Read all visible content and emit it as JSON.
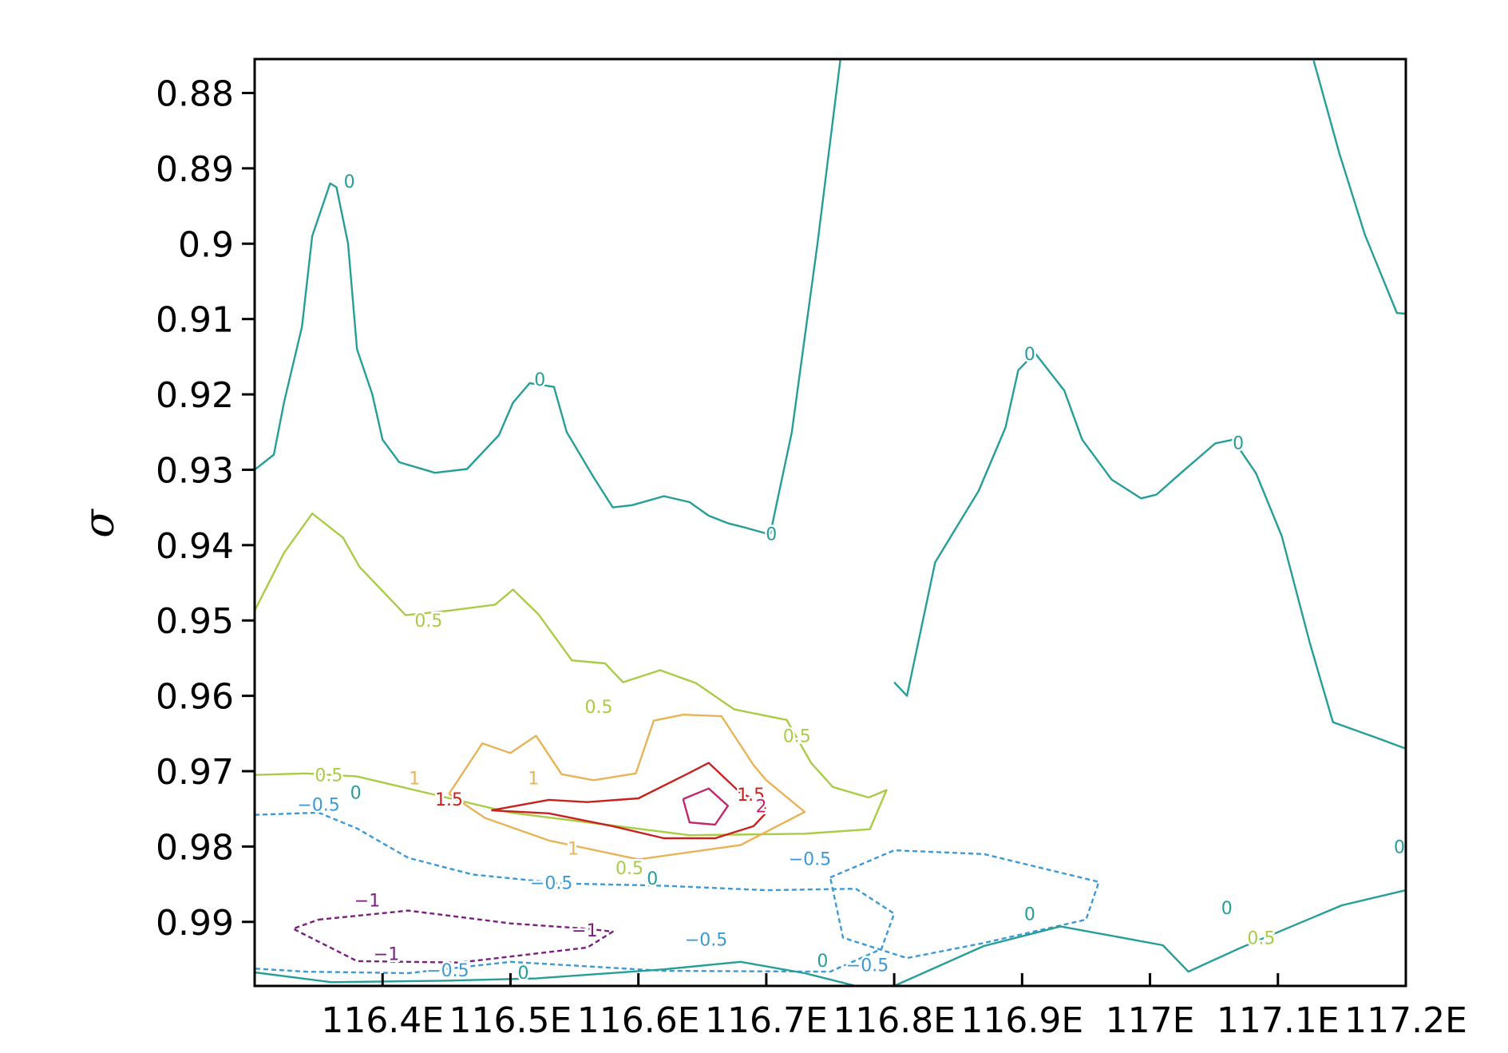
{
  "chart_data": {
    "type": "contour",
    "xlabel": "",
    "ylabel": "σ",
    "xlim": [
      116.3,
      117.2
    ],
    "ylim": [
      0.9985,
      0.8755
    ],
    "x_ticks": [
      116.4,
      116.5,
      116.6,
      116.7,
      116.8,
      116.9,
      117.0,
      117.1,
      117.2
    ],
    "x_tick_labels": [
      "116.4E",
      "116.5E",
      "116.6E",
      "116.7E",
      "116.8E",
      "116.9E",
      "117E",
      "117.1E",
      "117.2E"
    ],
    "y_ticks": [
      0.88,
      0.89,
      0.9,
      0.91,
      0.92,
      0.93,
      0.94,
      0.95,
      0.96,
      0.97,
      0.98,
      0.99
    ],
    "y_tick_labels": [
      "0.88",
      "0.89",
      "0.9",
      "0.91",
      "0.92",
      "0.93",
      "0.94",
      "0.95",
      "0.96",
      "0.97",
      "0.98",
      "0.99"
    ],
    "levels": [
      {
        "value": -1,
        "color": "#7a1f7e",
        "dash": true
      },
      {
        "value": -0.5,
        "color": "#3b9ad6",
        "dash": true
      },
      {
        "value": 0,
        "color": "#259e98",
        "dash": false
      },
      {
        "value": 0.5,
        "color": "#a8cc45",
        "dash": false
      },
      {
        "value": 1,
        "color": "#e8b357",
        "dash": false
      },
      {
        "value": 1.5,
        "color": "#c8221e",
        "dash": false
      },
      {
        "value": 2,
        "color": "#c2266e",
        "dash": false
      }
    ],
    "contours": [
      {
        "level": 0,
        "points": [
          [
            116.3,
            0.93
          ],
          [
            116.315,
            0.928
          ],
          [
            116.323,
            0.921
          ],
          [
            116.337,
            0.911
          ],
          [
            116.345,
            0.899
          ],
          [
            116.359,
            0.892
          ],
          [
            116.364,
            0.8925
          ],
          [
            116.373,
            0.9
          ],
          [
            116.38,
            0.914
          ],
          [
            116.392,
            0.92
          ],
          [
            116.4,
            0.926
          ],
          [
            116.413,
            0.929
          ],
          [
            116.441,
            0.9304
          ],
          [
            116.466,
            0.9299
          ],
          [
            116.491,
            0.9254
          ],
          [
            116.502,
            0.9211
          ],
          [
            116.515,
            0.9185
          ],
          [
            116.534,
            0.919
          ],
          [
            116.544,
            0.925
          ],
          [
            116.565,
            0.931
          ],
          [
            116.58,
            0.935
          ],
          [
            116.595,
            0.9347
          ],
          [
            116.62,
            0.9335
          ],
          [
            116.64,
            0.9343
          ],
          [
            116.655,
            0.9361
          ],
          [
            116.67,
            0.9371
          ],
          [
            116.684,
            0.9377
          ],
          [
            116.703,
            0.9386
          ],
          [
            116.72,
            0.925
          ],
          [
            116.74,
            0.9
          ],
          [
            116.758,
            0.8755
          ]
        ]
      },
      {
        "level": 0,
        "points": [
          [
            116.8,
            0.9582
          ],
          [
            116.81,
            0.96
          ],
          [
            116.832,
            0.9423
          ],
          [
            116.847,
            0.9381
          ],
          [
            116.866,
            0.9328
          ],
          [
            116.887,
            0.9244
          ],
          [
            116.897,
            0.9168
          ],
          [
            116.91,
            0.9145
          ],
          [
            116.933,
            0.9195
          ],
          [
            116.947,
            0.926
          ],
          [
            116.97,
            0.9313
          ],
          [
            116.993,
            0.9338
          ],
          [
            117.005,
            0.9333
          ],
          [
            117.025,
            0.9303
          ],
          [
            117.051,
            0.9265
          ],
          [
            117.065,
            0.926
          ],
          [
            117.083,
            0.9305
          ],
          [
            117.103,
            0.9388
          ],
          [
            117.125,
            0.953
          ],
          [
            117.143,
            0.9635
          ],
          [
            117.176,
            0.9655
          ],
          [
            117.2,
            0.967
          ]
        ]
      },
      {
        "level": 0,
        "points": [
          [
            117.2,
            0.9093
          ],
          [
            117.193,
            0.9092
          ],
          [
            117.168,
            0.8988
          ],
          [
            117.148,
            0.888
          ],
          [
            117.128,
            0.8757
          ]
        ]
      },
      {
        "level": 0.5,
        "points": [
          [
            116.3,
            0.9487
          ],
          [
            116.323,
            0.941
          ],
          [
            116.345,
            0.9358
          ],
          [
            116.369,
            0.939
          ],
          [
            116.382,
            0.9429
          ],
          [
            116.418,
            0.9493
          ],
          [
            116.452,
            0.9487
          ],
          [
            116.488,
            0.9479
          ],
          [
            116.502,
            0.9459
          ],
          [
            116.522,
            0.9492
          ],
          [
            116.548,
            0.9553
          ],
          [
            116.574,
            0.9557
          ],
          [
            116.588,
            0.9582
          ],
          [
            116.617,
            0.9566
          ],
          [
            116.645,
            0.9583
          ],
          [
            116.675,
            0.9618
          ],
          [
            116.716,
            0.9632
          ],
          [
            116.735,
            0.9689
          ],
          [
            116.752,
            0.9721
          ],
          [
            116.78,
            0.9735
          ],
          [
            116.794,
            0.9725
          ],
          [
            116.781,
            0.9777
          ],
          [
            116.73,
            0.9783
          ],
          [
            116.64,
            0.9785
          ],
          [
            116.5,
            0.9755
          ],
          [
            116.38,
            0.9707
          ],
          [
            116.34,
            0.9703
          ],
          [
            116.3,
            0.9705
          ]
        ]
      },
      {
        "level": 1,
        "points": [
          [
            116.452,
            0.973
          ],
          [
            116.478,
            0.9663
          ],
          [
            116.5,
            0.9676
          ],
          [
            116.52,
            0.9653
          ],
          [
            116.54,
            0.9704
          ],
          [
            116.565,
            0.9712
          ],
          [
            116.598,
            0.9703
          ],
          [
            116.612,
            0.9633
          ],
          [
            116.635,
            0.9625
          ],
          [
            116.665,
            0.9627
          ],
          [
            116.69,
            0.9692
          ],
          [
            116.7,
            0.9712
          ],
          [
            116.73,
            0.9754
          ],
          [
            116.68,
            0.9798
          ],
          [
            116.6,
            0.9817
          ],
          [
            116.53,
            0.9792
          ],
          [
            116.48,
            0.9762
          ],
          [
            116.452,
            0.973
          ]
        ]
      },
      {
        "level": 1.5,
        "points": [
          [
            116.485,
            0.9752
          ],
          [
            116.53,
            0.9738
          ],
          [
            116.56,
            0.9741
          ],
          [
            116.6,
            0.9736
          ],
          [
            116.64,
            0.9702
          ],
          [
            116.655,
            0.9689
          ],
          [
            116.68,
            0.9729
          ],
          [
            116.698,
            0.9743
          ],
          [
            116.7,
            0.9755
          ],
          [
            116.69,
            0.9773
          ],
          [
            116.66,
            0.9789
          ],
          [
            116.62,
            0.9789
          ],
          [
            116.58,
            0.9773
          ],
          [
            116.53,
            0.9756
          ],
          [
            116.485,
            0.9752
          ]
        ]
      },
      {
        "level": 2,
        "points": [
          [
            116.635,
            0.9737
          ],
          [
            116.655,
            0.9723
          ],
          [
            116.67,
            0.9746
          ],
          [
            116.66,
            0.9771
          ],
          [
            116.64,
            0.9768
          ],
          [
            116.635,
            0.9737
          ]
        ]
      },
      {
        "level": -0.5,
        "points": [
          [
            116.3,
            0.9758
          ],
          [
            116.35,
            0.9755
          ],
          [
            116.38,
            0.9776
          ],
          [
            116.42,
            0.9815
          ],
          [
            116.47,
            0.9837
          ],
          [
            116.54,
            0.9849
          ],
          [
            116.62,
            0.9852
          ],
          [
            116.7,
            0.9858
          ],
          [
            116.77,
            0.9856
          ],
          [
            116.8,
            0.9889
          ],
          [
            116.79,
            0.9936
          ],
          [
            116.75,
            0.9966
          ],
          [
            116.62,
            0.9965
          ],
          [
            116.5,
            0.9953
          ],
          [
            116.42,
            0.9968
          ],
          [
            116.34,
            0.9966
          ],
          [
            116.3,
            0.9962
          ]
        ]
      },
      {
        "level": -0.5,
        "points": [
          [
            116.75,
            0.9841
          ],
          [
            116.8,
            0.9805
          ],
          [
            116.87,
            0.981
          ],
          [
            116.96,
            0.9847
          ],
          [
            116.95,
            0.9897
          ],
          [
            116.87,
            0.9928
          ],
          [
            116.81,
            0.9948
          ],
          [
            116.76,
            0.9921
          ],
          [
            116.75,
            0.9841
          ]
        ]
      },
      {
        "level": -1,
        "points": [
          [
            116.35,
            0.9897
          ],
          [
            116.42,
            0.9885
          ],
          [
            116.5,
            0.9902
          ],
          [
            116.56,
            0.9909
          ],
          [
            116.58,
            0.9913
          ],
          [
            116.56,
            0.9934
          ],
          [
            116.46,
            0.9954
          ],
          [
            116.38,
            0.9952
          ],
          [
            116.33,
            0.9909
          ],
          [
            116.35,
            0.9897
          ]
        ]
      },
      {
        "level": 0,
        "points": [
          [
            116.3,
            0.9967
          ],
          [
            116.36,
            0.998
          ],
          [
            116.45,
            0.9978
          ],
          [
            116.52,
            0.9975
          ],
          [
            116.62,
            0.9963
          ],
          [
            116.68,
            0.9953
          ],
          [
            116.73,
            0.9968
          ],
          [
            116.77,
            0.9985
          ]
        ]
      },
      {
        "level": 0,
        "points": [
          [
            116.8,
            0.9985
          ],
          [
            116.87,
            0.9932
          ],
          [
            116.93,
            0.9906
          ],
          [
            117.01,
            0.9931
          ],
          [
            117.03,
            0.9966
          ],
          [
            117.07,
            0.9935
          ],
          [
            117.15,
            0.9878
          ],
          [
            117.2,
            0.9858
          ]
        ]
      }
    ],
    "contour_labels": [
      {
        "text": "0",
        "x": 116.374,
        "y": 0.8917,
        "level": 0
      },
      {
        "text": "0",
        "x": 116.523,
        "y": 0.918,
        "level": 0
      },
      {
        "text": "0",
        "x": 116.704,
        "y": 0.9385,
        "level": 0
      },
      {
        "text": "0",
        "x": 116.906,
        "y": 0.9146,
        "level": 0
      },
      {
        "text": "0",
        "x": 117.069,
        "y": 0.9264,
        "level": 0
      },
      {
        "text": "0",
        "x": 116.379,
        "y": 0.9728,
        "level": 0
      },
      {
        "text": "0",
        "x": 116.611,
        "y": 0.9842,
        "level": 0
      },
      {
        "text": "0",
        "x": 116.906,
        "y": 0.9889,
        "level": 0
      },
      {
        "text": "0",
        "x": 117.06,
        "y": 0.9881,
        "level": 0
      },
      {
        "text": "0",
        "x": 117.195,
        "y": 0.98,
        "level": 0
      },
      {
        "text": "0",
        "x": 116.51,
        "y": 0.9967,
        "level": 0
      },
      {
        "text": "0",
        "x": 116.744,
        "y": 0.9951,
        "level": 0
      },
      {
        "text": "0.5",
        "x": 116.436,
        "y": 0.95,
        "level": 0.5
      },
      {
        "text": "0.5",
        "x": 116.569,
        "y": 0.9614,
        "level": 0.5
      },
      {
        "text": "0.5",
        "x": 116.724,
        "y": 0.9653,
        "level": 0.5
      },
      {
        "text": "0.5",
        "x": 116.358,
        "y": 0.9705,
        "level": 0.5
      },
      {
        "text": "0.5",
        "x": 116.593,
        "y": 0.9828,
        "level": 0.5
      },
      {
        "text": "0.5",
        "x": 117.087,
        "y": 0.9921,
        "level": 0.5
      },
      {
        "text": "1",
        "x": 116.518,
        "y": 0.9709,
        "level": 1
      },
      {
        "text": "1",
        "x": 116.425,
        "y": 0.9709,
        "level": 1
      },
      {
        "text": "1",
        "x": 116.549,
        "y": 0.9802,
        "level": 1
      },
      {
        "text": "1.5",
        "x": 116.452,
        "y": 0.9737,
        "level": 1.5
      },
      {
        "text": "1.5",
        "x": 116.688,
        "y": 0.9731,
        "level": 1.5
      },
      {
        "text": "2",
        "x": 116.696,
        "y": 0.9746,
        "level": 2
      },
      {
        "text": "-0.5",
        "x": 116.35,
        "y": 0.9744,
        "level": -0.5
      },
      {
        "text": "-0.5",
        "x": 116.532,
        "y": 0.9848,
        "level": -0.5
      },
      {
        "text": "-0.5",
        "x": 116.734,
        "y": 0.9816,
        "level": -0.5
      },
      {
        "text": "-0.5",
        "x": 116.653,
        "y": 0.9923,
        "level": -0.5
      },
      {
        "text": "-0.5",
        "x": 116.451,
        "y": 0.9964,
        "level": -0.5
      },
      {
        "text": "-0.5",
        "x": 116.779,
        "y": 0.9957,
        "level": -0.5
      },
      {
        "text": "-1",
        "x": 116.388,
        "y": 0.9871,
        "level": -1
      },
      {
        "text": "-1",
        "x": 116.403,
        "y": 0.9942,
        "level": -1
      },
      {
        "text": "-1",
        "x": 116.558,
        "y": 0.9911,
        "level": -1
      }
    ]
  }
}
